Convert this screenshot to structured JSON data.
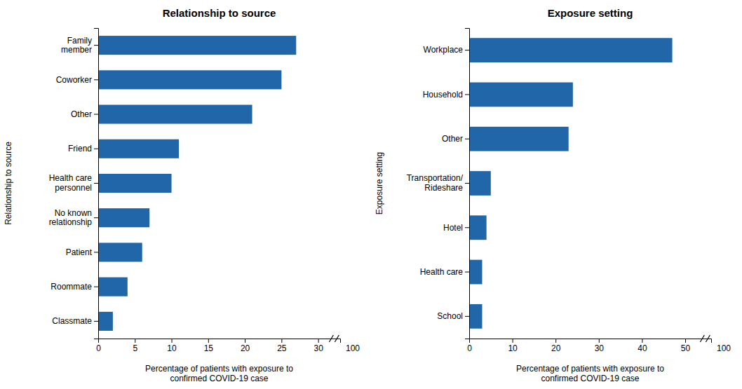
{
  "chart_data": [
    {
      "type": "bar",
      "orientation": "horizontal",
      "title": "Relationship to source",
      "categories": [
        "Family\nmember",
        "Coworker",
        "Other",
        "Friend",
        "Health care\npersonnel",
        "No known\nrelationship",
        "Patient",
        "Roommate",
        "Classmate"
      ],
      "values": [
        27,
        25,
        21,
        11,
        10,
        7,
        6,
        4,
        2
      ],
      "color": "#2166a8",
      "xlabel": "Percentage of patients with exposure to\nconfirmed COVID-19 case",
      "ylabel": "Relationship to source",
      "xlim": [
        0,
        33
      ],
      "xticks": [
        0,
        5,
        10,
        15,
        20,
        25,
        30
      ],
      "annotations": [
        "100"
      ],
      "grid": false
    },
    {
      "type": "bar",
      "orientation": "horizontal",
      "title": "Exposure setting",
      "categories": [
        "Workplace",
        "Household",
        "Other",
        "Transportation/\nRideshare",
        "Hotel",
        "Health care",
        "School"
      ],
      "values": [
        47,
        24,
        23,
        5,
        4,
        3,
        3
      ],
      "color": "#2166a8",
      "xlabel": "Percentage of patients with exposure to\nconfirmed COVID-19 case",
      "ylabel": "Exposure setting",
      "xlim": [
        0,
        56
      ],
      "xticks": [
        0,
        10,
        20,
        30,
        40,
        50
      ],
      "annotations": [
        "100"
      ],
      "grid": false
    }
  ]
}
